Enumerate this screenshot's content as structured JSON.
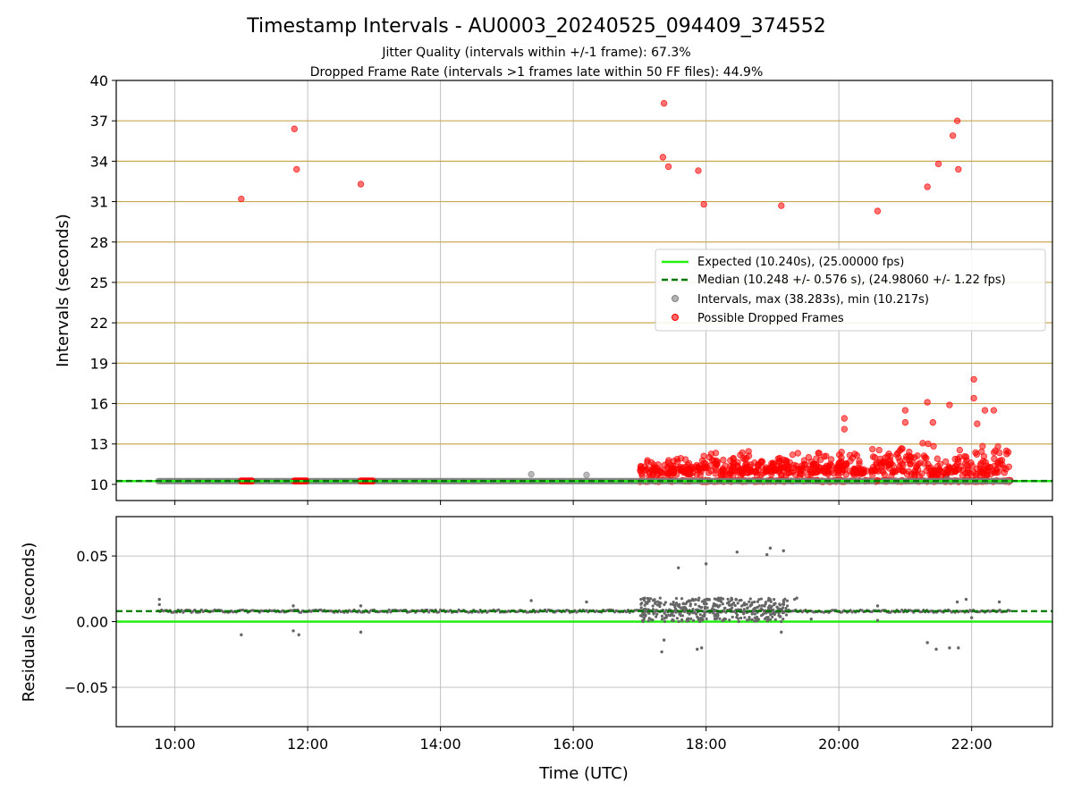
{
  "figure": {
    "title": "Timestamp Intervals - AU0003_20240525_094409_374552",
    "subtitle_1": "Jitter Quality (intervals within +/-1 frame): 67.3%",
    "subtitle_2": "Dropped Frame Rate (intervals >1 frames late within 50 FF files): 44.9%",
    "xlabel": "Time (UTC)"
  },
  "colors": {
    "expected": "#22ee11",
    "median": "#007700",
    "intervals": "#808080",
    "dropped": "#ff0000",
    "hline": "#c8a850",
    "grid": "#c0c0c0",
    "residual_points": "#666666"
  },
  "chart_data": [
    {
      "type": "scatter",
      "ylabel": "Intervals (seconds)",
      "xlim": [
        "09:07",
        "23:13"
      ],
      "ylim": [
        8.8,
        40
      ],
      "xticks": [
        "10:00",
        "12:00",
        "14:00",
        "16:00",
        "18:00",
        "20:00",
        "22:00"
      ],
      "yticks": [
        10,
        13,
        16,
        19,
        22,
        25,
        28,
        31,
        34,
        37,
        40
      ],
      "grid": true,
      "legend_position": "center-right",
      "legend": {
        "expected": "Expected (10.240s), (25.00000 fps)",
        "median": "Median (10.248 +/- 0.576 s), (24.98060 +/- 1.22 fps)",
        "intervals": "Intervals, max (38.283s), min (10.217s)",
        "dropped": "Possible Dropped Frames"
      },
      "expected": 10.24,
      "median": 10.248,
      "intervals_band": {
        "start": "09:45",
        "end": "22:35",
        "value": 10.24
      },
      "intervals_outliers": [
        {
          "x": "15:22",
          "y": 10.75
        },
        {
          "x": "16:12",
          "y": 10.7
        },
        {
          "x": "21:38",
          "y": 10.4
        }
      ],
      "dropped_clusters": [
        {
          "start": "11:00",
          "end": "11:10",
          "y": 10.25
        },
        {
          "start": "11:48",
          "end": "12:00",
          "y": 10.25
        },
        {
          "start": "12:48",
          "end": "13:00",
          "y": 10.25
        }
      ],
      "dropped_dense_region": {
        "start": "17:00",
        "end": "22:35",
        "base": 10.25,
        "low": 10.8,
        "high": 13.5
      },
      "dropped_points": [
        {
          "x": "11:00",
          "y": 31.2
        },
        {
          "x": "11:48",
          "y": 36.4
        },
        {
          "x": "11:50",
          "y": 33.4
        },
        {
          "x": "12:48",
          "y": 32.3
        },
        {
          "x": "17:22",
          "y": 38.3
        },
        {
          "x": "17:21",
          "y": 34.3
        },
        {
          "x": "17:26",
          "y": 33.6
        },
        {
          "x": "17:53",
          "y": 33.3
        },
        {
          "x": "17:58",
          "y": 30.8
        },
        {
          "x": "19:08",
          "y": 30.7
        },
        {
          "x": "20:35",
          "y": 30.3
        },
        {
          "x": "21:20",
          "y": 32.1
        },
        {
          "x": "21:30",
          "y": 33.8
        },
        {
          "x": "21:43",
          "y": 35.9
        },
        {
          "x": "21:47",
          "y": 37.0
        },
        {
          "x": "21:48",
          "y": 33.4
        },
        {
          "x": "20:05",
          "y": 14.9
        },
        {
          "x": "20:05",
          "y": 14.1
        },
        {
          "x": "21:00",
          "y": 15.5
        },
        {
          "x": "21:00",
          "y": 14.6
        },
        {
          "x": "21:20",
          "y": 16.1
        },
        {
          "x": "21:40",
          "y": 15.9
        },
        {
          "x": "22:02",
          "y": 17.8
        },
        {
          "x": "22:02",
          "y": 16.4
        },
        {
          "x": "22:12",
          "y": 15.5
        },
        {
          "x": "22:05",
          "y": 14.5
        },
        {
          "x": "21:25",
          "y": 14.6
        },
        {
          "x": "22:20",
          "y": 15.5
        },
        {
          "x": "20:35",
          "y": 10.3
        }
      ]
    },
    {
      "type": "scatter",
      "ylabel": "Residuals (seconds)",
      "ylim": [
        -0.08,
        0.08
      ],
      "yticks": [
        -0.05,
        0.0,
        0.05
      ],
      "ytick_labels": [
        "−0.05",
        "0.00",
        "0.05"
      ],
      "grid": true,
      "expected": 0.0,
      "median": 0.008,
      "residual_band": {
        "start": "09:45",
        "end": "22:35",
        "value": 0.008
      },
      "residual_points": [
        {
          "x": "09:46",
          "y": 0.017
        },
        {
          "x": "09:46",
          "y": 0.013
        },
        {
          "x": "11:00",
          "y": -0.01
        },
        {
          "x": "11:47",
          "y": 0.012
        },
        {
          "x": "11:47",
          "y": -0.007
        },
        {
          "x": "11:52",
          "y": -0.01
        },
        {
          "x": "12:48",
          "y": 0.012
        },
        {
          "x": "12:48",
          "y": -0.008
        },
        {
          "x": "15:22",
          "y": 0.016
        },
        {
          "x": "16:12",
          "y": 0.015
        },
        {
          "x": "17:20",
          "y": -0.023
        },
        {
          "x": "17:22",
          "y": -0.014
        },
        {
          "x": "17:35",
          "y": 0.041
        },
        {
          "x": "17:52",
          "y": -0.021
        },
        {
          "x": "17:56",
          "y": -0.02
        },
        {
          "x": "18:00",
          "y": 0.044
        },
        {
          "x": "18:28",
          "y": 0.053
        },
        {
          "x": "18:55",
          "y": 0.051
        },
        {
          "x": "18:58",
          "y": 0.056
        },
        {
          "x": "19:10",
          "y": 0.054
        },
        {
          "x": "19:08",
          "y": -0.008
        },
        {
          "x": "19:20",
          "y": 0.017
        },
        {
          "x": "19:22",
          "y": 0.018
        },
        {
          "x": "19:35",
          "y": 0.002
        },
        {
          "x": "20:35",
          "y": 0.012
        },
        {
          "x": "20:35",
          "y": 0.001
        },
        {
          "x": "21:20",
          "y": -0.016
        },
        {
          "x": "21:28",
          "y": -0.021
        },
        {
          "x": "21:40",
          "y": -0.02
        },
        {
          "x": "21:48",
          "y": -0.02
        },
        {
          "x": "21:47",
          "y": 0.015
        },
        {
          "x": "21:55",
          "y": 0.017
        },
        {
          "x": "22:00",
          "y": 0.003
        },
        {
          "x": "22:25",
          "y": 0.015
        }
      ],
      "residual_dense_region": {
        "start": "17:00",
        "end": "19:15",
        "low": 0.0,
        "high": 0.018
      }
    }
  ]
}
